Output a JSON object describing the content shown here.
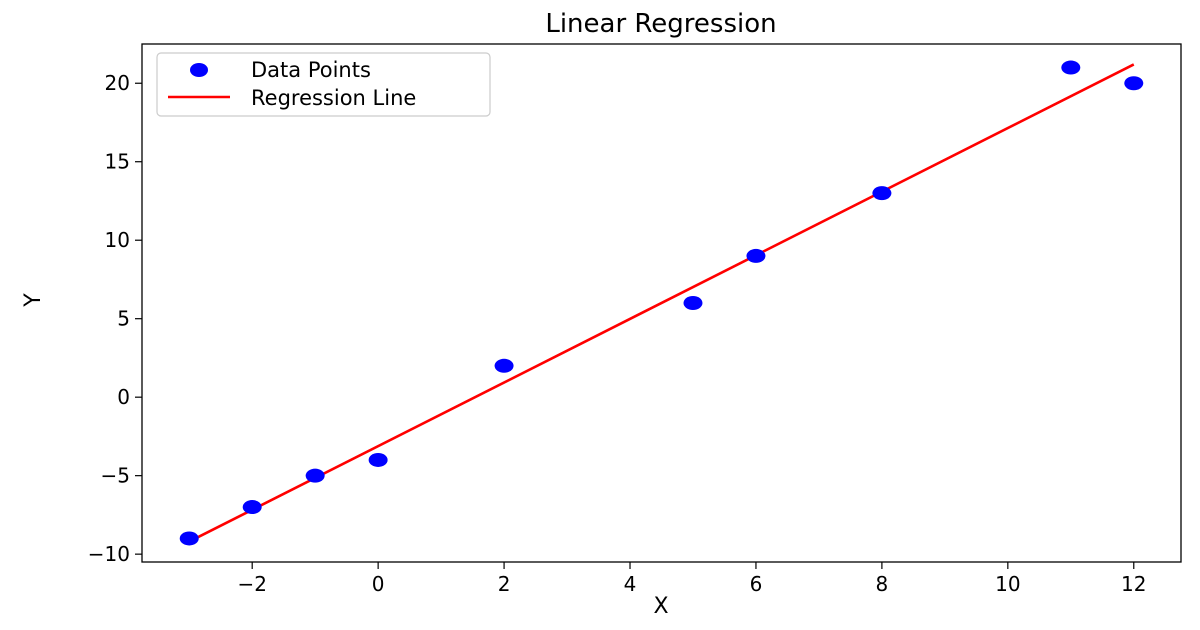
{
  "chart_data": {
    "type": "scatter",
    "title": "Linear Regression",
    "xlabel": "X",
    "ylabel": "Y",
    "xlim": [
      -3.75,
      12.75
    ],
    "ylim": [
      -10.5,
      22.5
    ],
    "xticks": [
      -2,
      0,
      2,
      4,
      6,
      8,
      10,
      12
    ],
    "xtick_labels": [
      "−2",
      "0",
      "2",
      "4",
      "6",
      "8",
      "10",
      "12"
    ],
    "yticks": [
      -10,
      -5,
      0,
      5,
      10,
      15,
      20
    ],
    "ytick_labels": [
      "−10",
      "−5",
      "0",
      "5",
      "10",
      "15",
      "20"
    ],
    "grid": false,
    "legend_position": "top-left",
    "series": [
      {
        "name": "Data Points",
        "kind": "scatter",
        "color": "#0000ff",
        "x": [
          -3,
          -2,
          -1,
          0,
          2,
          5,
          6,
          8,
          11,
          12
        ],
        "y": [
          -9,
          -7,
          -5,
          -4,
          2,
          6,
          9,
          13,
          21,
          20
        ]
      },
      {
        "name": "Regression Line",
        "kind": "line",
        "color": "#ff0000",
        "x": [
          -3,
          12
        ],
        "y": [
          -9.2,
          21.2
        ]
      }
    ]
  }
}
